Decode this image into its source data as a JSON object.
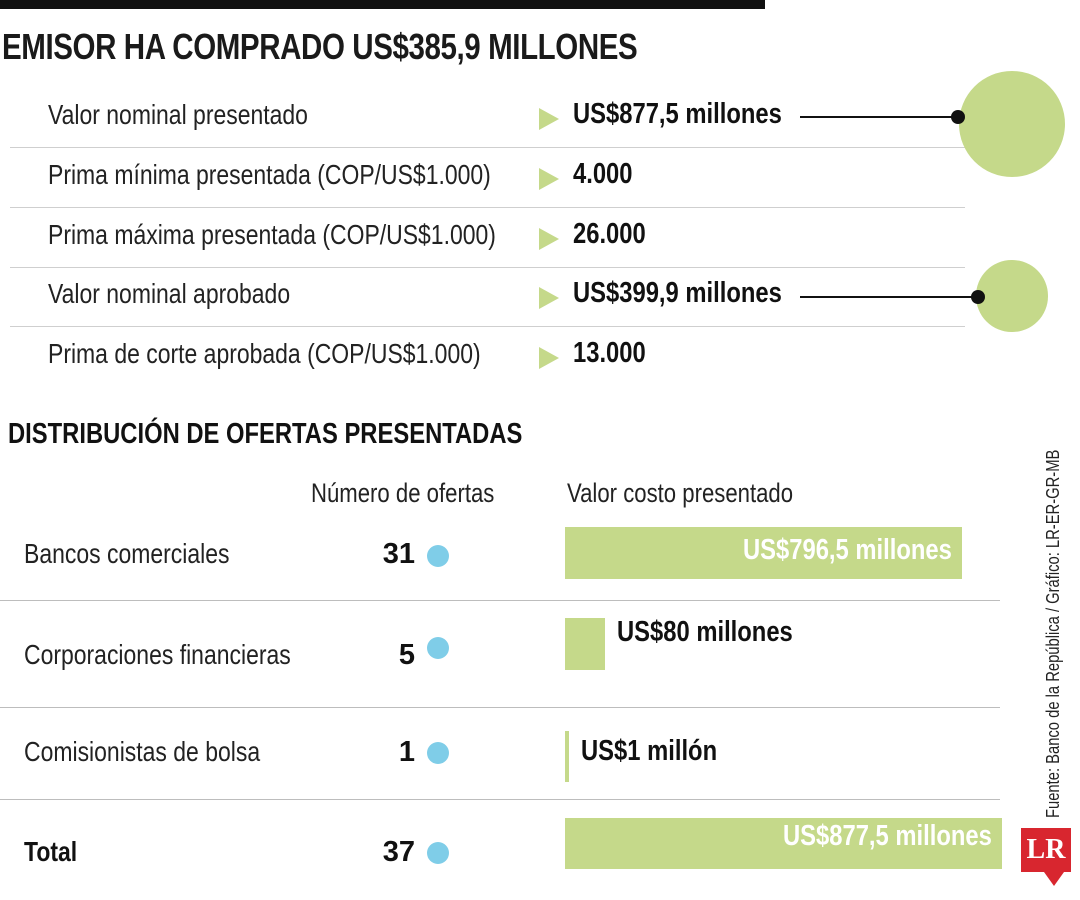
{
  "title": "EMISOR HA COMPRADO US$385,9 MILLONES",
  "summary": [
    {
      "label": "Valor nominal presentado",
      "value": "US$877,5 millones"
    },
    {
      "label": "Prima mínima presentada (COP/US$1.000)",
      "value": "4.000"
    },
    {
      "label": "Prima máxima presentada (COP/US$1.000)",
      "value": "26.000"
    },
    {
      "label": "Valor nominal aprobado",
      "value": "US$399,9 millones"
    },
    {
      "label": "Prima de corte aprobada (COP/US$1.000)",
      "value": "13.000"
    }
  ],
  "distribution": {
    "subtitle": "DISTRIBUCIÓN DE OFERTAS PRESENTADAS",
    "col_count": "Número de ofertas",
    "col_value": "Valor costo presentado",
    "rows": [
      {
        "category": "Bancos comerciales",
        "count": "31",
        "value_label": "US$796,5 millones"
      },
      {
        "category": "Corporaciones financieras",
        "count": "5",
        "value_label": "US$80 millones"
      },
      {
        "category": "Comisionistas de bolsa",
        "count": "1",
        "value_label": "US$1 millón"
      },
      {
        "category": "Total",
        "count": "37",
        "value_label": "US$877,5 millones"
      }
    ]
  },
  "source": "Fuente: Banco de la República / Gráfico: LR-ER-GR-MB",
  "logo": "LR",
  "colors": {
    "accent_green": "#c5d98a",
    "count_dot_blue": "#7fcde8",
    "logo_red": "#d8262f",
    "text": "#1a1a1a"
  },
  "chart_data": {
    "type": "bar",
    "categories": [
      "Bancos comerciales",
      "Corporaciones financieras",
      "Comisionistas de bolsa",
      "Total"
    ],
    "series": [
      {
        "name": "Número de ofertas",
        "values": [
          31,
          5,
          1,
          37
        ]
      },
      {
        "name": "Valor costo presentado",
        "values": [
          796.5,
          80,
          1,
          877.5
        ]
      }
    ],
    "bubbles": [
      {
        "label": "Valor nominal presentado",
        "value": 877.5
      },
      {
        "label": "Valor nominal aprobado",
        "value": 399.9
      }
    ]
  }
}
